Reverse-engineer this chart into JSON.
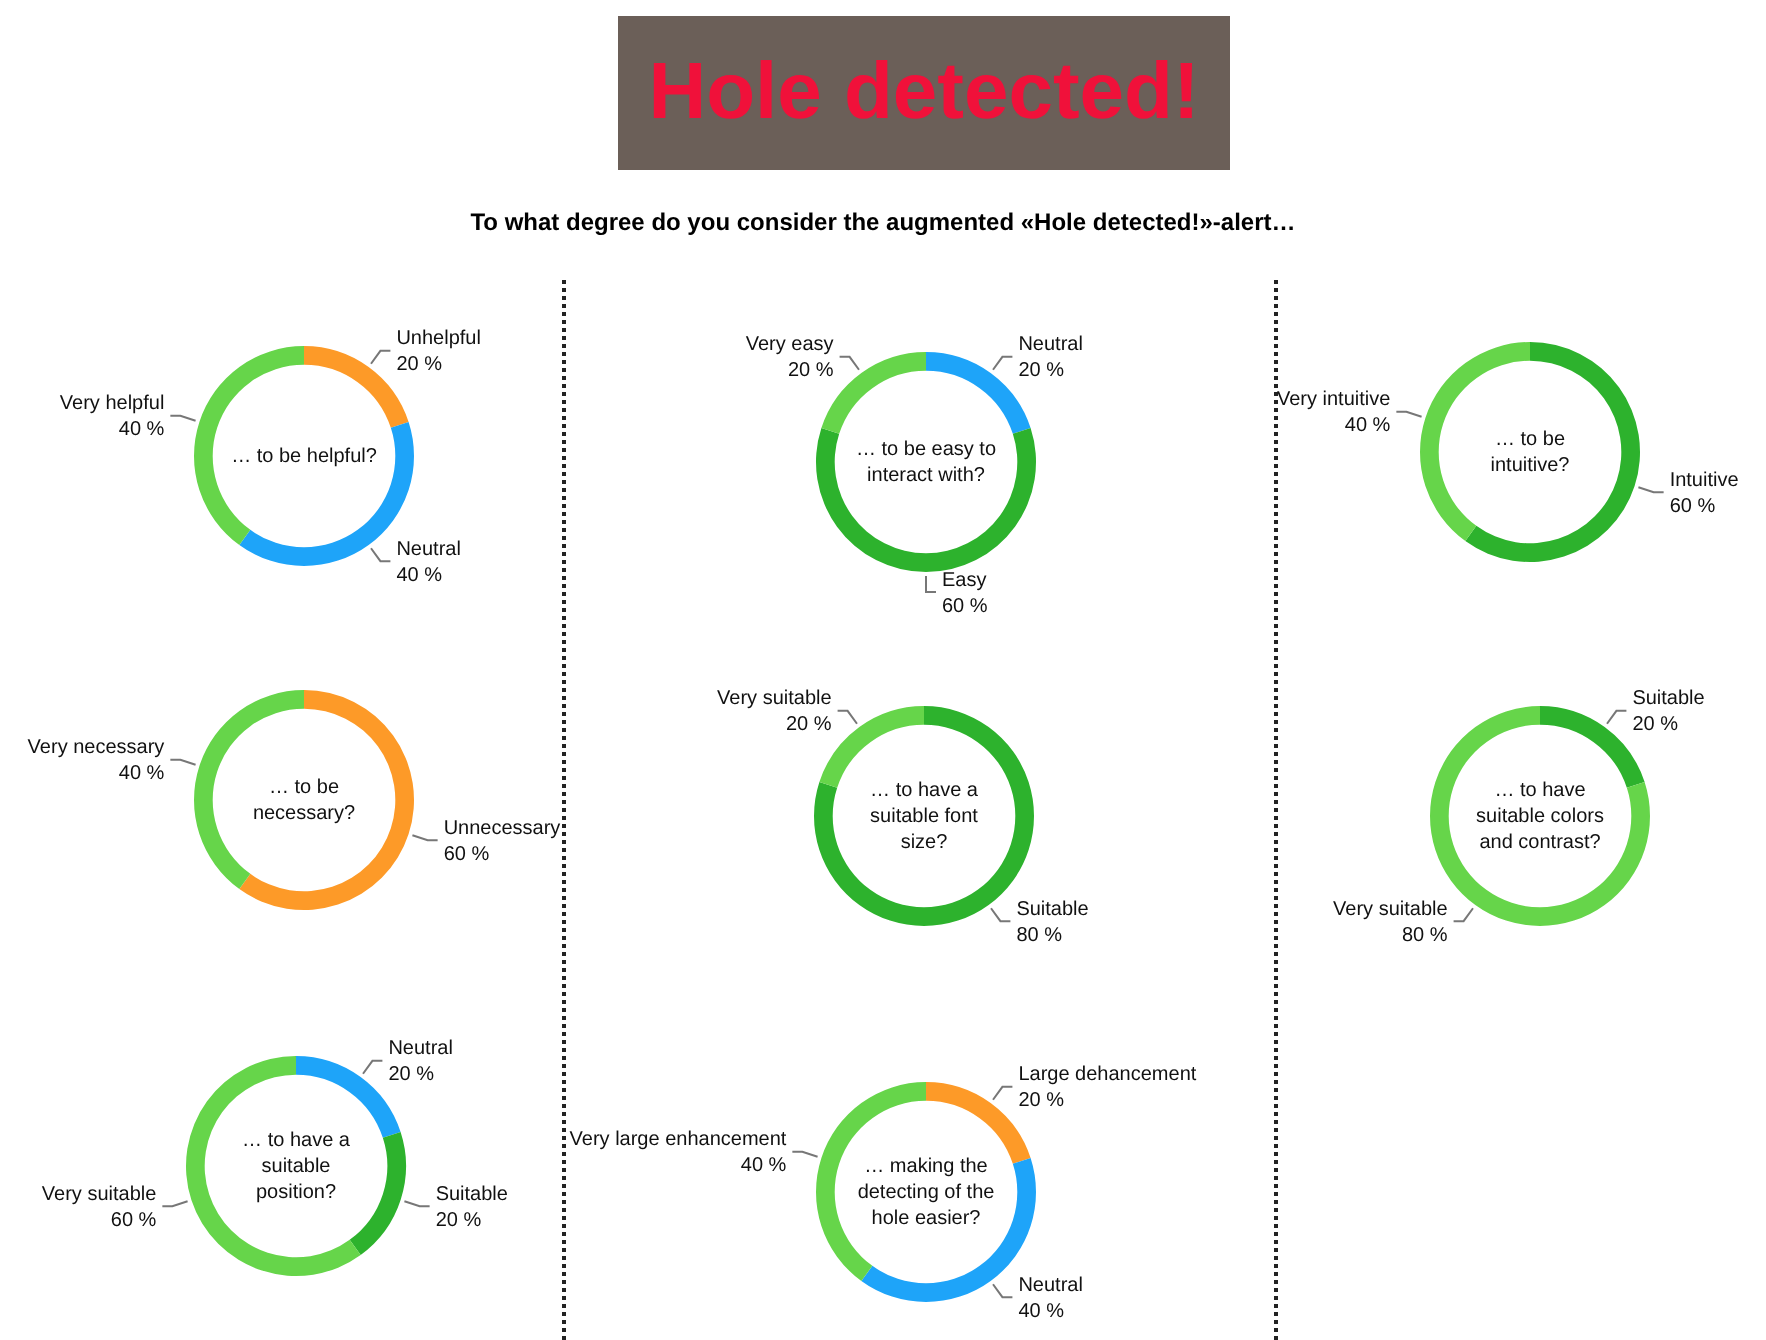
{
  "chart_data": [
    {
      "type": "other",
      "title": "Hole detected!",
      "subtitle": "To what degree do you consider the augmented «Hole detected!»-alert…"
    },
    {
      "type": "donut",
      "title": "… to be helpful?",
      "categories": [
        "Unhelpful",
        "Neutral",
        "Very helpful"
      ],
      "values": [
        20,
        40,
        40
      ],
      "value_labels": [
        "20 %",
        "40 %",
        "40 %"
      ],
      "colors": [
        "#fd9a28",
        "#1ea4f9",
        "#66d54a"
      ]
    },
    {
      "type": "donut",
      "title": "… to be necessary?",
      "categories": [
        "Unnecessary",
        "Very necessary"
      ],
      "values": [
        60,
        40
      ],
      "value_labels": [
        "60 %",
        "40 %"
      ],
      "colors": [
        "#fd9a28",
        "#66d54a"
      ]
    },
    {
      "type": "donut",
      "title": "… to have a suitable position?",
      "categories": [
        "Neutral",
        "Suitable",
        "Very suitable"
      ],
      "values": [
        20,
        20,
        60
      ],
      "value_labels": [
        "20 %",
        "20 %",
        "60 %"
      ],
      "colors": [
        "#1ea4f9",
        "#2db22d",
        "#66d54a"
      ]
    },
    {
      "type": "donut",
      "title": "… to be easy to interact with?",
      "categories": [
        "Neutral",
        "Easy",
        "Very easy"
      ],
      "values": [
        20,
        60,
        20
      ],
      "value_labels": [
        "20 %",
        "60 %",
        "20 %"
      ],
      "colors": [
        "#1ea4f9",
        "#2db22d",
        "#66d54a"
      ]
    },
    {
      "type": "donut",
      "title": "… to have a suitable font size?",
      "categories": [
        "Suitable",
        "Very suitable"
      ],
      "values": [
        80,
        20
      ],
      "value_labels": [
        "80 %",
        "20 %"
      ],
      "colors": [
        "#2db22d",
        "#66d54a"
      ]
    },
    {
      "type": "donut",
      "title": "… making the detecting of the hole easier?",
      "categories": [
        "Large dehancement",
        "Neutral",
        "Very large enhancement"
      ],
      "values": [
        20,
        40,
        40
      ],
      "value_labels": [
        "20 %",
        "40 %",
        "40 %"
      ],
      "colors": [
        "#fd9a28",
        "#1ea4f9",
        "#66d54a"
      ]
    },
    {
      "type": "donut",
      "title": "… to be intuitive?",
      "categories": [
        "Intuitive",
        "Very intuitive"
      ],
      "values": [
        60,
        40
      ],
      "value_labels": [
        "60 %",
        "40 %"
      ],
      "colors": [
        "#2db22d",
        "#66d54a"
      ]
    },
    {
      "type": "donut",
      "title": "… to have suitable colors and contrast?",
      "categories": [
        "Suitable",
        "Very suitable"
      ],
      "values": [
        20,
        80
      ],
      "value_labels": [
        "20 %",
        "80 %"
      ],
      "colors": [
        "#2db22d",
        "#66d54a"
      ]
    }
  ]
}
